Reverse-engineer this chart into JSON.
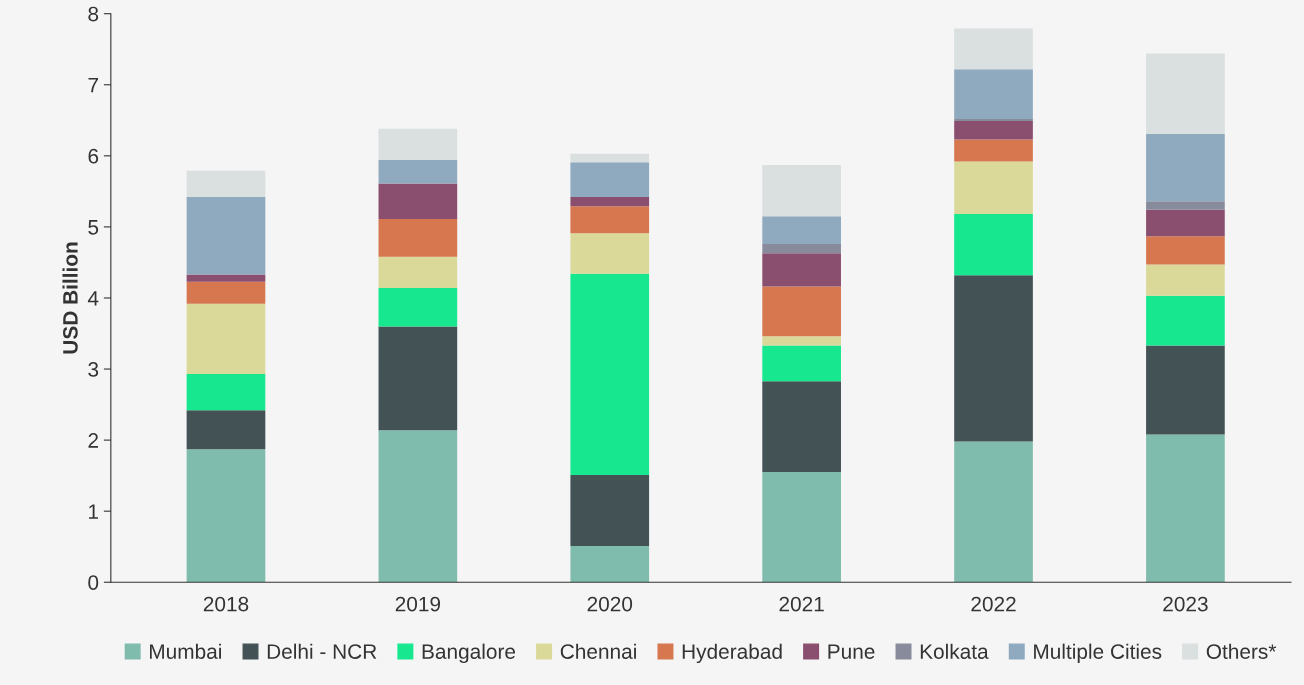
{
  "chart_data": {
    "type": "bar",
    "stacked": true,
    "ylabel": "USD Billion",
    "categories": [
      "2018",
      "2019",
      "2020",
      "2021",
      "2022",
      "2023"
    ],
    "series": [
      {
        "name": "Mumbai",
        "color": "#80bcad",
        "values": [
          1.87,
          2.14,
          0.51,
          1.55,
          1.98,
          2.08
        ]
      },
      {
        "name": "Delhi - NCR",
        "color": "#435254",
        "values": [
          0.55,
          1.46,
          1.0,
          1.28,
          2.34,
          1.25
        ]
      },
      {
        "name": "Bangalore",
        "color": "#17e88f",
        "values": [
          0.51,
          0.54,
          2.83,
          0.5,
          0.86,
          0.7
        ]
      },
      {
        "name": "Chennai",
        "color": "#dbd99a",
        "values": [
          0.99,
          0.44,
          0.57,
          0.13,
          0.74,
          0.44
        ]
      },
      {
        "name": "Hyderabad",
        "color": "#d67750",
        "values": [
          0.31,
          0.53,
          0.38,
          0.7,
          0.31,
          0.4
        ]
      },
      {
        "name": "Pune",
        "color": "#8a4f6f",
        "values": [
          0.1,
          0.5,
          0.13,
          0.47,
          0.26,
          0.37
        ]
      },
      {
        "name": "Kolkata",
        "color": "#888b9c",
        "values": [
          0,
          0,
          0,
          0.13,
          0.03,
          0.12
        ]
      },
      {
        "name": "Multiple Cities",
        "color": "#8fa9bf",
        "values": [
          1.09,
          0.33,
          0.49,
          0.39,
          0.7,
          0.95
        ]
      },
      {
        "name": "Others*",
        "color": "#d9e0df",
        "values": [
          0.37,
          0.44,
          0.12,
          0.72,
          0.57,
          1.13
        ]
      }
    ],
    "ylim": [
      0,
      8
    ],
    "yticks": [
      0,
      1,
      2,
      3,
      4,
      5,
      6,
      7,
      8
    ],
    "grid": false,
    "legend": "bottom"
  }
}
